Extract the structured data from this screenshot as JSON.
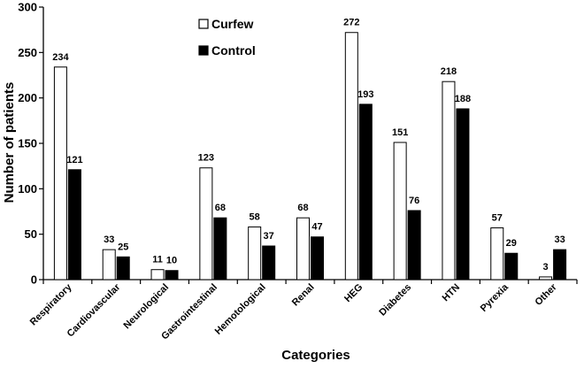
{
  "chart_data": {
    "type": "bar",
    "title": "",
    "xlabel": "Categories",
    "ylabel": "Number of patients",
    "ylim": [
      0,
      300
    ],
    "yticks": [
      0,
      50,
      100,
      150,
      200,
      250,
      300
    ],
    "grid": false,
    "legend_position": "top-center",
    "categories": [
      "Respiratory",
      "Cardiovascular",
      "Neurological",
      "Gastrointestinal",
      "Hemotological",
      "Renal",
      "HEG",
      "Diabetes",
      "HTN",
      "Pyrexia",
      "Other"
    ],
    "series": [
      {
        "name": "Curfew",
        "values": [
          234,
          33,
          11,
          123,
          58,
          68,
          272,
          151,
          218,
          57,
          3
        ],
        "color": "#ffffff"
      },
      {
        "name": "Control",
        "values": [
          121,
          25,
          10,
          68,
          37,
          47,
          193,
          76,
          188,
          29,
          33
        ],
        "color": "#000000"
      }
    ]
  }
}
